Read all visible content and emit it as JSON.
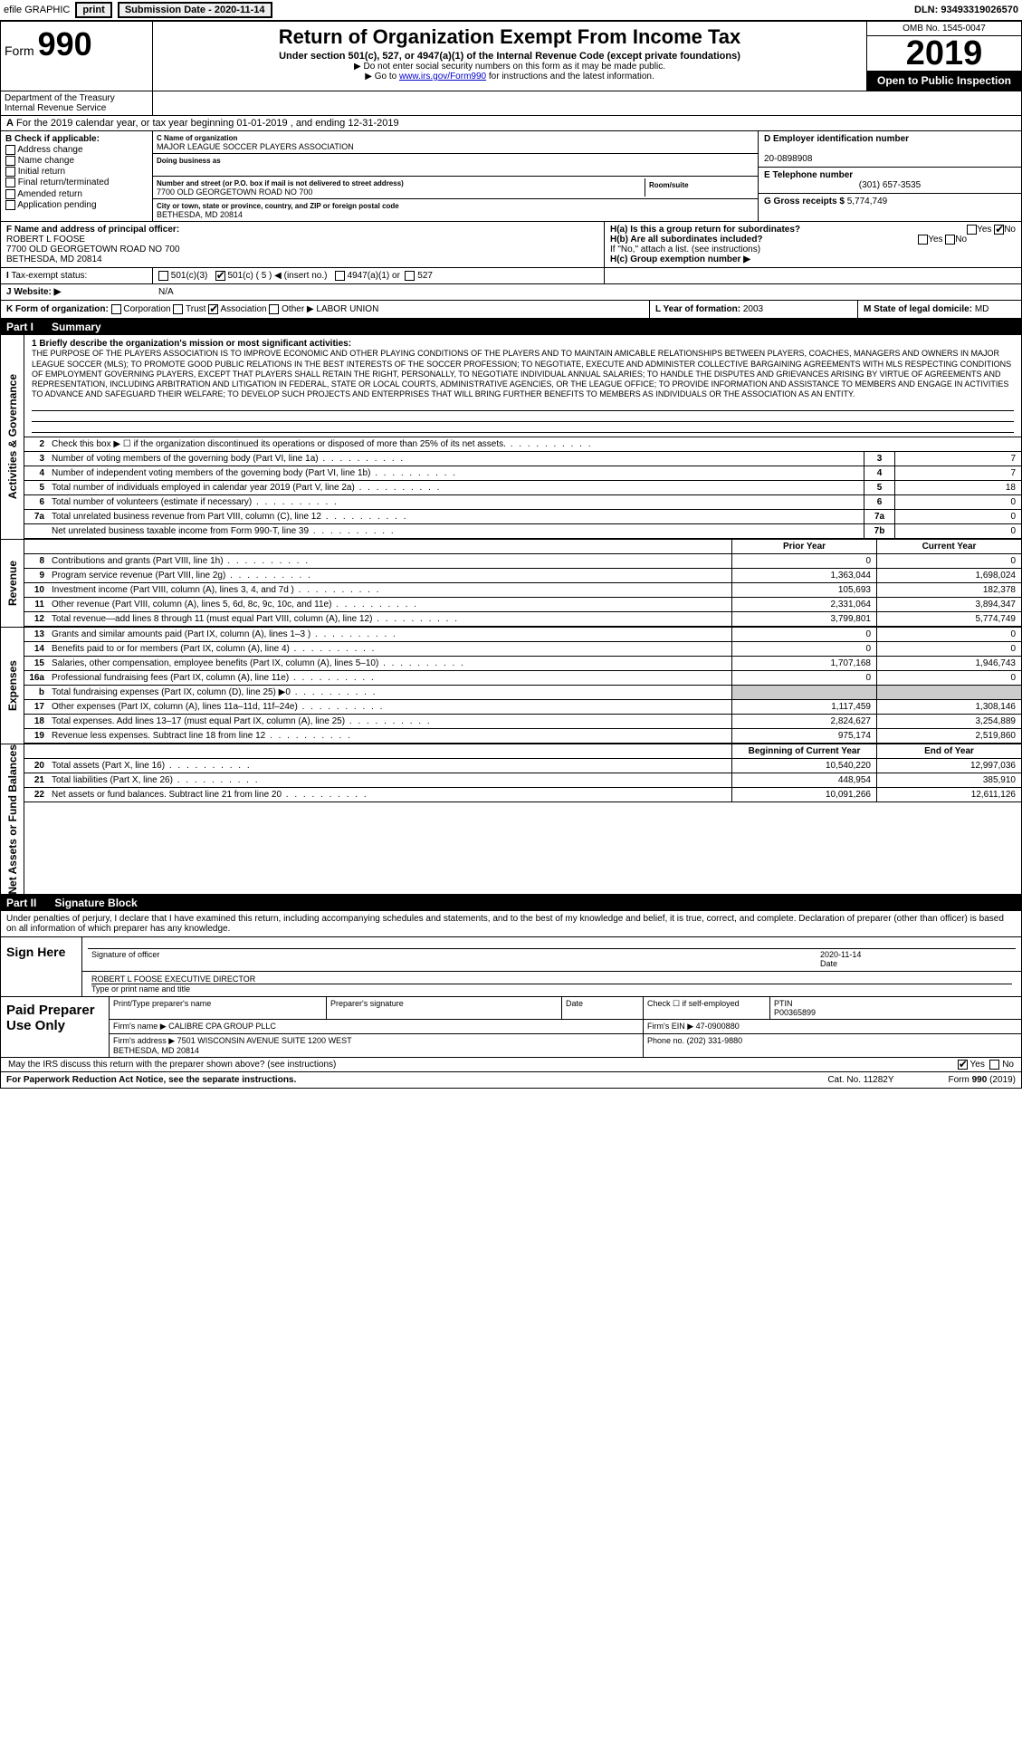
{
  "topbar": {
    "efile": "efile GRAPHIC",
    "print": "print",
    "subdate_label": "Submission Date - 2020-11-14",
    "dln": "DLN: 93493319026570"
  },
  "header": {
    "form_prefix": "Form",
    "form_num": "990",
    "title": "Return of Organization Exempt From Income Tax",
    "subtitle": "Under section 501(c), 527, or 4947(a)(1) of the Internal Revenue Code (except private foundations)",
    "note1": "▶ Do not enter social security numbers on this form as it may be made public.",
    "note2_pre": "▶ Go to ",
    "note2_link": "www.irs.gov/Form990",
    "note2_post": " for instructions and the latest information.",
    "omb": "OMB No. 1545-0047",
    "year": "2019",
    "open": "Open to Public Inspection",
    "dept1": "Department of the Treasury",
    "dept2": "Internal Revenue Service"
  },
  "lineA": "For the 2019 calendar year, or tax year beginning 01-01-2019   , and ending 12-31-2019",
  "boxB": {
    "title": "B Check if applicable:",
    "items": [
      "Address change",
      "Name change",
      "Initial return",
      "Final return/terminated",
      "Amended return",
      "Application pending"
    ]
  },
  "boxC": {
    "name_lbl": "C Name of organization",
    "name": "MAJOR LEAGUE SOCCER PLAYERS ASSOCIATION",
    "dba_lbl": "Doing business as",
    "dba": "",
    "street_lbl": "Number and street (or P.O. box if mail is not delivered to street address)",
    "street": "7700 OLD GEORGETOWN ROAD NO 700",
    "room_lbl": "Room/suite",
    "city_lbl": "City or town, state or province, country, and ZIP or foreign postal code",
    "city": "BETHESDA, MD  20814"
  },
  "boxD": {
    "ein_lbl": "D Employer identification number",
    "ein": "20-0898908",
    "tel_lbl": "E Telephone number",
    "tel": "(301) 657-3535",
    "gross_lbl": "G Gross receipts $",
    "gross": "5,774,749"
  },
  "boxF": {
    "lbl": "F  Name and address of principal officer:",
    "name": "ROBERT L FOOSE",
    "addr1": "7700 OLD GEORGETOWN ROAD NO 700",
    "addr2": "BETHESDA, MD  20814"
  },
  "boxH": {
    "ha": "H(a)  Is this a group return for subordinates?",
    "hb": "H(b)  Are all subordinates included?",
    "hb2": "If \"No,\" attach a list. (see instructions)",
    "hc": "H(c)  Group exemption number ▶",
    "yes": "Yes",
    "no": "No"
  },
  "rowI": {
    "lbl": "Tax-exempt status:",
    "o1": "501(c)(3)",
    "o2": "501(c) ( 5 ) ◀ (insert no.)",
    "o3": "4947(a)(1) or",
    "o4": "527"
  },
  "rowJ": {
    "lbl": "Website: ▶",
    "val": "N/A"
  },
  "rowK": {
    "lbl": "K Form of organization:",
    "o1": "Corporation",
    "o2": "Trust",
    "o3": "Association",
    "o4": "Other ▶",
    "other": "LABOR UNION",
    "l_lbl": "L Year of formation:",
    "l_val": "2003",
    "m_lbl": "M State of legal domicile:",
    "m_val": "MD"
  },
  "part1": {
    "num": "Part I",
    "title": "Summary"
  },
  "mission": {
    "lead": "1  Briefly describe the organization's mission or most significant activities:",
    "text": "THE PURPOSE OF THE PLAYERS ASSOCIATION IS TO IMPROVE ECONOMIC AND OTHER PLAYING CONDITIONS OF THE PLAYERS AND TO MAINTAIN AMICABLE RELATIONSHIPS BETWEEN PLAYERS, COACHES, MANAGERS AND OWNERS IN MAJOR LEAGUE SOCCER (MLS); TO PROMOTE GOOD PUBLIC RELATIONS IN THE BEST INTERESTS OF THE SOCCER PROFESSION; TO NEGOTIATE, EXECUTE AND ADMINISTER COLLECTIVE BARGAINING AGREEMENTS WITH MLS RESPECTING CONDITIONS OF EMPLOYMENT GOVERNING PLAYERS, EXCEPT THAT PLAYERS SHALL RETAIN THE RIGHT, PERSONALLY, TO NEGOTIATE INDIVIDUAL ANNUAL SALARIES; TO HANDLE THE DISPUTES AND GRIEVANCES ARISING BY VIRTUE OF AGREEMENTS AND REPRESENTATION, INCLUDING ARBITRATION AND LITIGATION IN FEDERAL, STATE OR LOCAL COURTS, ADMINISTRATIVE AGENCIES, OR THE LEAGUE OFFICE; TO PROVIDE INFORMATION AND ASSISTANCE TO MEMBERS AND ENGAGE IN ACTIVITIES TO ADVANCE AND SAFEGUARD THEIR WELFARE; TO DEVELOP SUCH PROJECTS AND ENTERPRISES THAT WILL BRING FURTHER BENEFITS TO MEMBERS AS INDIVIDUALS OR THE ASSOCIATION AS AN ENTITY."
  },
  "gov_lines": [
    {
      "n": "2",
      "t": "Check this box ▶ ☐ if the organization discontinued its operations or disposed of more than 25% of its net assets.",
      "box": "",
      "val": ""
    },
    {
      "n": "3",
      "t": "Number of voting members of the governing body (Part VI, line 1a)",
      "box": "3",
      "val": "7"
    },
    {
      "n": "4",
      "t": "Number of independent voting members of the governing body (Part VI, line 1b)",
      "box": "4",
      "val": "7"
    },
    {
      "n": "5",
      "t": "Total number of individuals employed in calendar year 2019 (Part V, line 2a)",
      "box": "5",
      "val": "18"
    },
    {
      "n": "6",
      "t": "Total number of volunteers (estimate if necessary)",
      "box": "6",
      "val": "0"
    },
    {
      "n": "7a",
      "t": "Total unrelated business revenue from Part VIII, column (C), line 12",
      "box": "7a",
      "val": "0"
    },
    {
      "n": "",
      "t": "Net unrelated business taxable income from Form 990-T, line 39",
      "box": "7b",
      "val": "0"
    }
  ],
  "rev_hdr": {
    "prior": "Prior Year",
    "current": "Current Year"
  },
  "revenue": [
    {
      "n": "8",
      "t": "Contributions and grants (Part VIII, line 1h)",
      "p": "0",
      "c": "0"
    },
    {
      "n": "9",
      "t": "Program service revenue (Part VIII, line 2g)",
      "p": "1,363,044",
      "c": "1,698,024"
    },
    {
      "n": "10",
      "t": "Investment income (Part VIII, column (A), lines 3, 4, and 7d )",
      "p": "105,693",
      "c": "182,378"
    },
    {
      "n": "11",
      "t": "Other revenue (Part VIII, column (A), lines 5, 6d, 8c, 9c, 10c, and 11e)",
      "p": "2,331,064",
      "c": "3,894,347"
    },
    {
      "n": "12",
      "t": "Total revenue—add lines 8 through 11 (must equal Part VIII, column (A), line 12)",
      "p": "3,799,801",
      "c": "5,774,749"
    }
  ],
  "expenses": [
    {
      "n": "13",
      "t": "Grants and similar amounts paid (Part IX, column (A), lines 1–3 )",
      "p": "0",
      "c": "0"
    },
    {
      "n": "14",
      "t": "Benefits paid to or for members (Part IX, column (A), line 4)",
      "p": "0",
      "c": "0"
    },
    {
      "n": "15",
      "t": "Salaries, other compensation, employee benefits (Part IX, column (A), lines 5–10)",
      "p": "1,707,168",
      "c": "1,946,743"
    },
    {
      "n": "16a",
      "t": "Professional fundraising fees (Part IX, column (A), line 11e)",
      "p": "0",
      "c": "0"
    },
    {
      "n": "b",
      "t": "Total fundraising expenses (Part IX, column (D), line 25) ▶0",
      "p": "",
      "c": "",
      "shade": true
    },
    {
      "n": "17",
      "t": "Other expenses (Part IX, column (A), lines 11a–11d, 11f–24e)",
      "p": "1,117,459",
      "c": "1,308,146"
    },
    {
      "n": "18",
      "t": "Total expenses. Add lines 13–17 (must equal Part IX, column (A), line 25)",
      "p": "2,824,627",
      "c": "3,254,889"
    },
    {
      "n": "19",
      "t": "Revenue less expenses. Subtract line 18 from line 12",
      "p": "975,174",
      "c": "2,519,860"
    }
  ],
  "net_hdr": {
    "prior": "Beginning of Current Year",
    "current": "End of Year"
  },
  "net": [
    {
      "n": "20",
      "t": "Total assets (Part X, line 16)",
      "p": "10,540,220",
      "c": "12,997,036"
    },
    {
      "n": "21",
      "t": "Total liabilities (Part X, line 26)",
      "p": "448,954",
      "c": "385,910"
    },
    {
      "n": "22",
      "t": "Net assets or fund balances. Subtract line 21 from line 20",
      "p": "10,091,266",
      "c": "12,611,126"
    }
  ],
  "sides": {
    "gov": "Activities & Governance",
    "rev": "Revenue",
    "exp": "Expenses",
    "net": "Net Assets or Fund Balances"
  },
  "part2": {
    "num": "Part II",
    "title": "Signature Block"
  },
  "sig": {
    "intro": "Under penalties of perjury, I declare that I have examined this return, including accompanying schedules and statements, and to the best of my knowledge and belief, it is true, correct, and complete. Declaration of preparer (other than officer) is based on all information of which preparer has any knowledge.",
    "here": "Sign Here",
    "sig_lbl": "Signature of officer",
    "date_lbl": "Date",
    "date": "2020-11-14",
    "name": "ROBERT L FOOSE  EXECUTIVE DIRECTOR",
    "name_lbl": "Type or print name and title"
  },
  "prep": {
    "lab": "Paid Preparer Use Only",
    "h1": "Print/Type preparer's name",
    "h2": "Preparer's signature",
    "h3": "Date",
    "h4": "Check ☐ if self-employed",
    "h5": "PTIN",
    "ptin": "P00365899",
    "firm_lbl": "Firm's name   ▶",
    "firm": "CALIBRE CPA GROUP PLLC",
    "ein_lbl": "Firm's EIN ▶",
    "ein": "47-0900880",
    "addr_lbl": "Firm's address ▶",
    "addr": "7501 WISCONSIN AVENUE SUITE 1200 WEST\nBETHESDA, MD  20814",
    "phone_lbl": "Phone no.",
    "phone": "(202) 331-9880"
  },
  "discuss": {
    "q": "May the IRS discuss this return with the preparer shown above? (see instructions)",
    "yes": "Yes",
    "no": "No"
  },
  "footer": {
    "left": "For Paperwork Reduction Act Notice, see the separate instructions.",
    "mid": "Cat. No. 11282Y",
    "right": "Form 990 (2019)"
  }
}
